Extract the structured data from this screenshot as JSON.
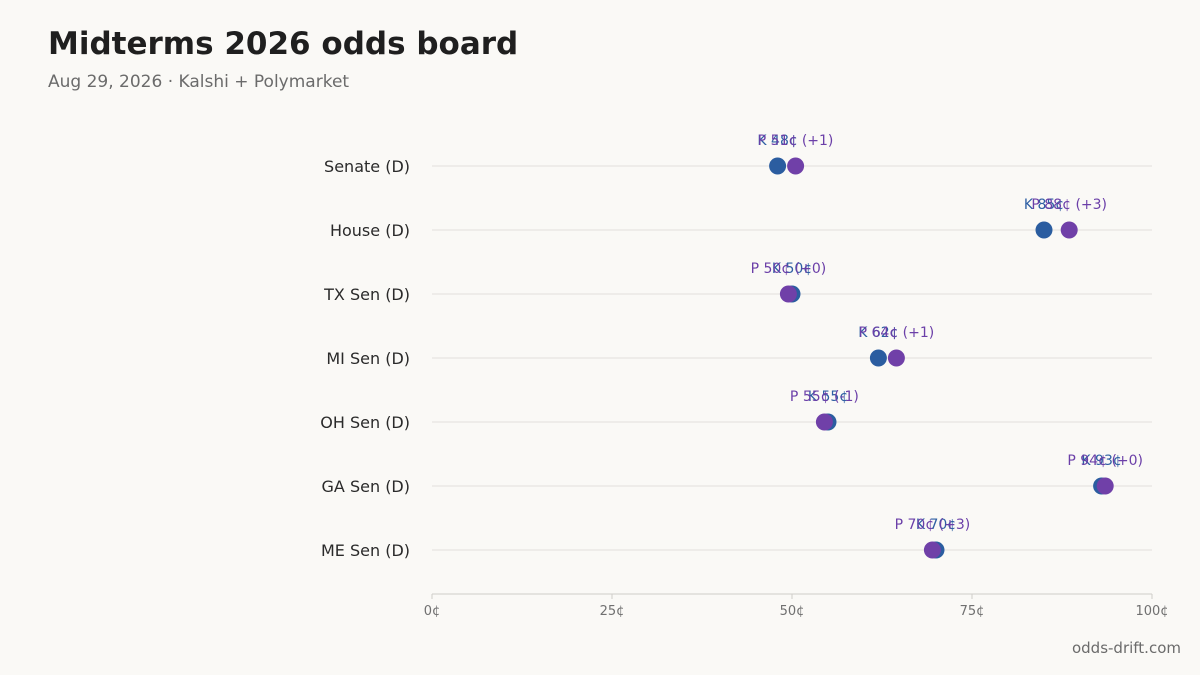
{
  "header": {
    "title": "Midterms 2026 odds board",
    "subtitle": "Aug 29, 2026 · Kalshi + Polymarket"
  },
  "footer": {
    "source": "odds-drift.com"
  },
  "colors": {
    "kalshi": "#2b5da0",
    "polymarket": "#7040a8",
    "kalshi_text": "#2e5fa3",
    "polymarket_text": "#6b3fa8",
    "grid": "#e2e0dc",
    "axis": "#cfcdc8"
  },
  "chart_data": {
    "type": "scatter",
    "title": "Midterms 2026 odds board",
    "subtitle": "Aug 29, 2026 · Kalshi + Polymarket",
    "x_ticks": [
      "0¢",
      "25¢",
      "50¢",
      "75¢",
      "100¢"
    ],
    "xlim": [
      0,
      100
    ],
    "grid": true,
    "categories": [
      "Senate (D)",
      "House (D)",
      "TX Sen (D)",
      "MI Sen (D)",
      "OH Sen (D)",
      "GA Sen (D)",
      "ME Sen (D)"
    ],
    "series": [
      {
        "key": "kalshi",
        "values": [
          48,
          85,
          50,
          62,
          55,
          93,
          70
        ]
      },
      {
        "key": "polymarket",
        "values": [
          50.5,
          88.5,
          49.5,
          64.5,
          54.5,
          93.5,
          69.5
        ]
      }
    ],
    "labels": [
      {
        "kalshi": "K 48¢",
        "polymarket": "P 51¢ (+1)"
      },
      {
        "kalshi": "K 85¢",
        "polymarket": "P 88¢ (+3)"
      },
      {
        "kalshi": "K 50¢",
        "polymarket": "P 50¢ (+0)"
      },
      {
        "kalshi": "K 62¢",
        "polymarket": "P 64¢ (+1)"
      },
      {
        "kalshi": "K 55¢",
        "polymarket": "P 55¢ (-1)"
      },
      {
        "kalshi": "K 93¢",
        "polymarket": "P 94¢ (+0)"
      },
      {
        "kalshi": "K 70¢",
        "polymarket": "P 70¢ (+3)"
      }
    ]
  }
}
